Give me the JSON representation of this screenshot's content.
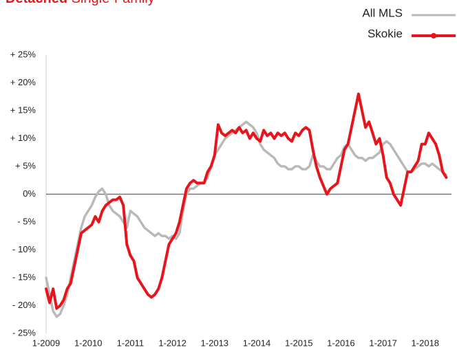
{
  "chart_data": {
    "type": "line",
    "title_prefix": "Detached",
    "title": "Single-Family",
    "title_color": "#e8141c",
    "categories": [
      "1-2009",
      null,
      null,
      null,
      null,
      null,
      null,
      null,
      null,
      null,
      null,
      null,
      "1-2010",
      null,
      null,
      null,
      null,
      null,
      null,
      null,
      null,
      null,
      null,
      null,
      "1-2011",
      null,
      null,
      null,
      null,
      null,
      null,
      null,
      null,
      null,
      null,
      null,
      "1-2012",
      null,
      null,
      null,
      null,
      null,
      null,
      null,
      null,
      null,
      null,
      null,
      "1-2013",
      null,
      null,
      null,
      null,
      null,
      null,
      null,
      null,
      null,
      null,
      null,
      "1-2014",
      null,
      null,
      null,
      null,
      null,
      null,
      null,
      null,
      null,
      null,
      null,
      "1-2015",
      null,
      null,
      null,
      null,
      null,
      null,
      null,
      null,
      null,
      null,
      null,
      "1-2016",
      null,
      null,
      null,
      null,
      null,
      null,
      null,
      null,
      null,
      null,
      null,
      "1-2017",
      null,
      null,
      null,
      null,
      null,
      null,
      null,
      null,
      null,
      null,
      null,
      "1-2018",
      null,
      null,
      null,
      null,
      null,
      null
    ],
    "series": [
      {
        "name": "All MLS",
        "color": "#b9b9b9",
        "values": [
          -15,
          -18,
          -21,
          -22,
          -21.5,
          -20,
          -18,
          -15,
          -12,
          -9,
          -6,
          -4,
          -3,
          -2,
          -0.5,
          0.5,
          1,
          0,
          -2,
          -3,
          -3.5,
          -4,
          -5,
          -6,
          -3,
          -3.5,
          -4,
          -5,
          -6,
          -6.5,
          -7,
          -7.5,
          -7,
          -7.5,
          -7.5,
          -8,
          -7.5,
          -8,
          -7,
          -3,
          0,
          1,
          1,
          1.5,
          2,
          2,
          3,
          5,
          7,
          8,
          9,
          10,
          10.5,
          11,
          11.5,
          12,
          12.5,
          13,
          12.5,
          12,
          11,
          9,
          8,
          7.5,
          7,
          6.5,
          5.5,
          5,
          5,
          4.5,
          4.5,
          5,
          5,
          4.5,
          4.5,
          5,
          7,
          6,
          5,
          5,
          4.5,
          4.5,
          5.5,
          6.5,
          7,
          8.5,
          9,
          8,
          7,
          6.5,
          6.5,
          6,
          6.5,
          6.5,
          7,
          7.5,
          9,
          9.5,
          9,
          8,
          7,
          6,
          5,
          4,
          4,
          4.5,
          5,
          5.5,
          5.5,
          5,
          5.5,
          5,
          4.5,
          4,
          3.5
        ]
      },
      {
        "name": "Skokie",
        "color": "#e8141c",
        "values": [
          -17,
          -19.5,
          -17,
          -20.5,
          -20,
          -19,
          -17,
          -16,
          -13,
          -10,
          -7,
          -6.5,
          -6,
          -5.5,
          -4,
          -5,
          -3,
          -2,
          -1.5,
          -1,
          -1,
          -0.5,
          -2,
          -9,
          -11,
          -12,
          -15,
          -16,
          -17,
          -18,
          -18.5,
          -18,
          -17,
          -15,
          -12,
          -9,
          -8,
          -7,
          -5,
          -2,
          1,
          2,
          2.5,
          2,
          2,
          2,
          4,
          5,
          7,
          12.5,
          11,
          10.5,
          11,
          11.5,
          11,
          12,
          11,
          11.5,
          10,
          11,
          10,
          9.5,
          11.5,
          10.5,
          11,
          10,
          11,
          10.5,
          11,
          10,
          9.5,
          11,
          10.5,
          11.5,
          12,
          11.5,
          8,
          5,
          3,
          1.5,
          0,
          1,
          1.5,
          2,
          5,
          8,
          9,
          12,
          15,
          18,
          15,
          12,
          13,
          11,
          9,
          10,
          7,
          3,
          2,
          0,
          -1,
          -2,
          1,
          4,
          4,
          5,
          6,
          9,
          9,
          11,
          10,
          9,
          7,
          4,
          3
        ]
      }
    ],
    "ylim": [
      -25,
      25
    ],
    "yticks": [
      {
        "value": -25,
        "label": "- 25%"
      },
      {
        "value": -20,
        "label": "- 20%"
      },
      {
        "value": -15,
        "label": "- 15%"
      },
      {
        "value": -10,
        "label": "- 10%"
      },
      {
        "value": -5,
        "label": "- 5%"
      },
      {
        "value": 0,
        "label": "0%"
      },
      {
        "value": 5,
        "label": "+ 5%"
      },
      {
        "value": 10,
        "label": "+ 10%"
      },
      {
        "value": 15,
        "label": "+ 15%"
      },
      {
        "value": 20,
        "label": "+ 20%"
      },
      {
        "value": 25,
        "label": "+ 25%"
      }
    ],
    "grid": false,
    "legend": "top-right"
  }
}
